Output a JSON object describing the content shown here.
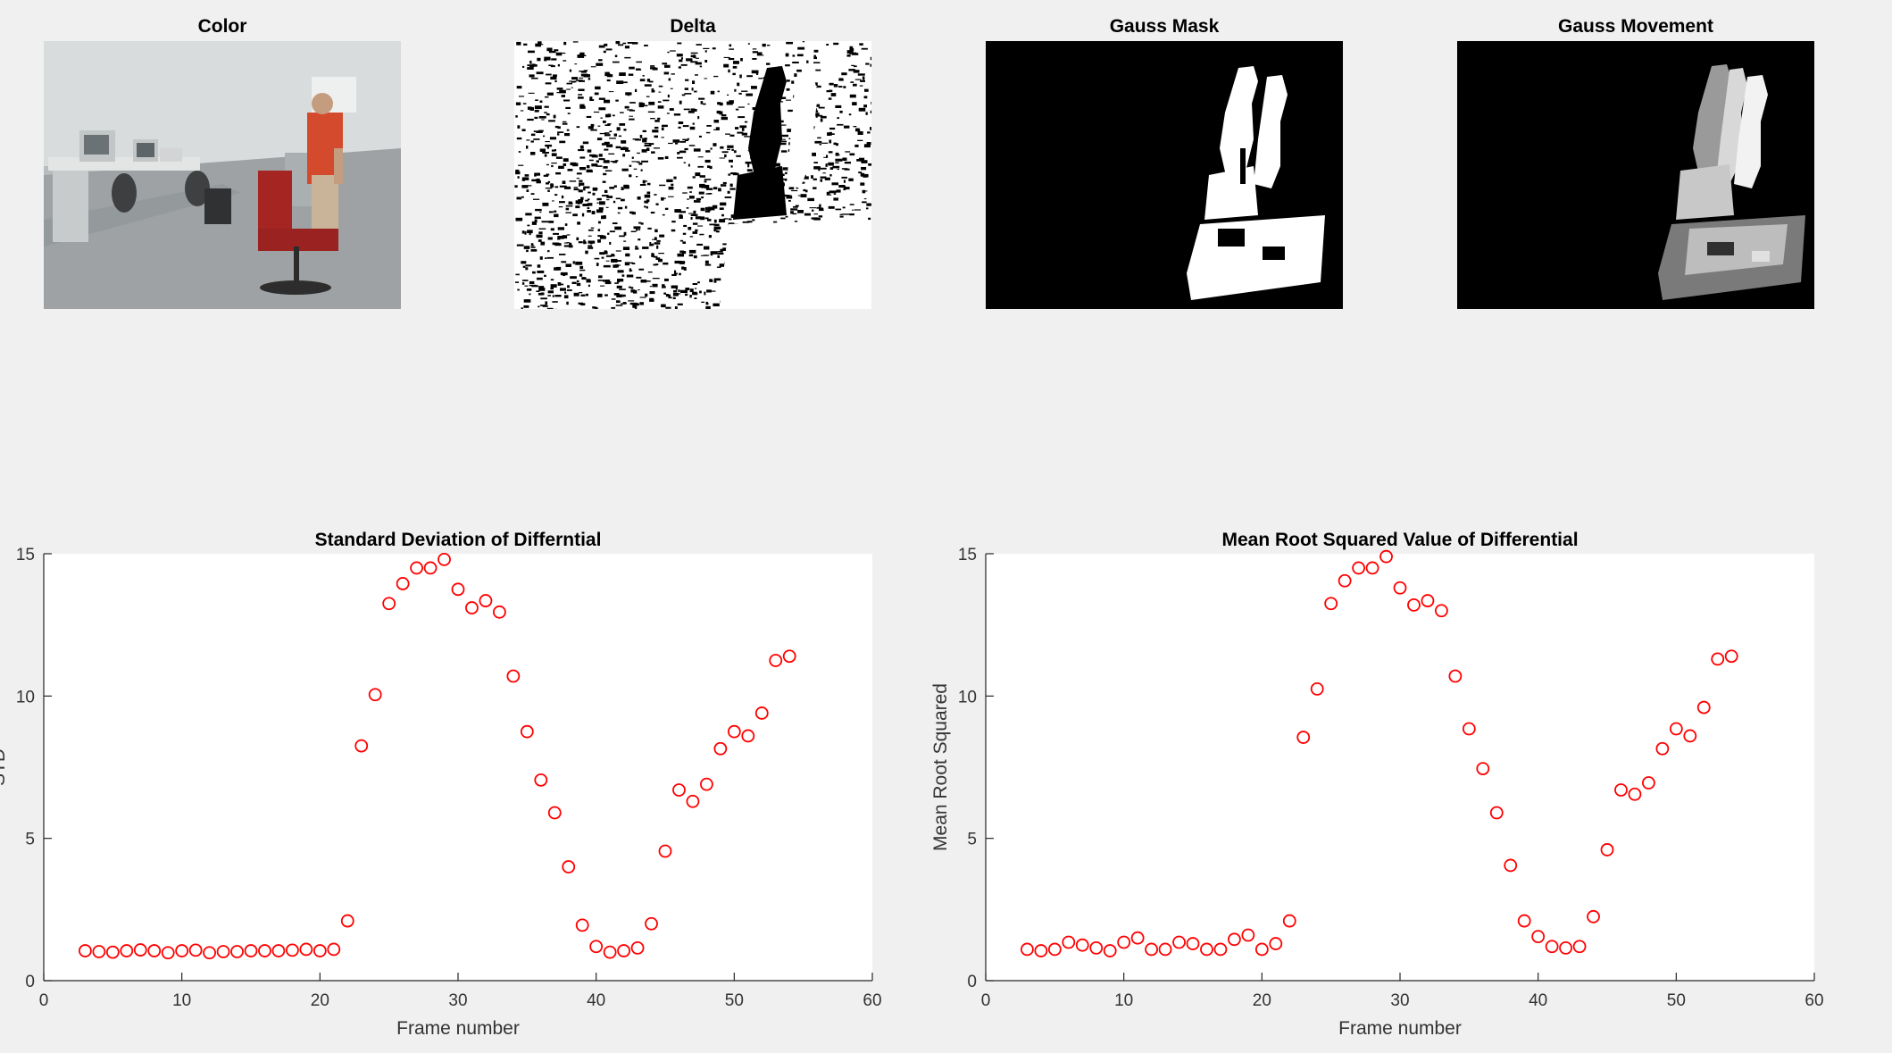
{
  "images": [
    {
      "title": "Color"
    },
    {
      "title": "Delta"
    },
    {
      "title": "Gauss Mask"
    },
    {
      "title": "Gauss Movement"
    }
  ],
  "colors": {
    "background": "#f0f0f0",
    "axes_face": "#ffffff",
    "marker": "#ff0000",
    "axis_line": "#262626"
  },
  "chart_data": [
    {
      "type": "scatter",
      "title": "Standard Deviation of Differntial",
      "xlabel": "Frame number",
      "ylabel": "STD",
      "xlim": [
        0,
        60
      ],
      "ylim": [
        0,
        15
      ],
      "xticks": [
        0,
        10,
        20,
        30,
        40,
        50,
        60
      ],
      "yticks": [
        0,
        5,
        10,
        15
      ],
      "marker": "o",
      "x": [
        3,
        4,
        5,
        6,
        7,
        8,
        9,
        10,
        11,
        12,
        13,
        14,
        15,
        16,
        17,
        18,
        19,
        20,
        21,
        22,
        23,
        24,
        25,
        26,
        27,
        28,
        29,
        30,
        31,
        32,
        33,
        34,
        35,
        36,
        37,
        38,
        39,
        40,
        41,
        42,
        43,
        44,
        45,
        46,
        47,
        48,
        49,
        50,
        51,
        52,
        53,
        54
      ],
      "y": [
        1.05,
        1.02,
        1.0,
        1.05,
        1.08,
        1.05,
        0.98,
        1.05,
        1.07,
        0.98,
        1.02,
        1.02,
        1.05,
        1.05,
        1.05,
        1.07,
        1.1,
        1.05,
        1.1,
        2.1,
        8.25,
        10.05,
        13.25,
        13.95,
        14.5,
        14.5,
        14.8,
        13.75,
        13.1,
        13.35,
        12.95,
        10.7,
        8.75,
        7.05,
        5.9,
        4.0,
        1.95,
        1.2,
        1.0,
        1.05,
        1.15,
        2.0,
        4.55,
        6.7,
        6.3,
        6.9,
        8.15,
        8.75,
        8.6,
        9.4,
        11.25,
        11.4
      ]
    },
    {
      "type": "scatter",
      "title": "Mean Root Squared Value of Differential",
      "xlabel": "Frame number",
      "ylabel": "Mean Root Squared",
      "xlim": [
        0,
        60
      ],
      "ylim": [
        0,
        15
      ],
      "xticks": [
        0,
        10,
        20,
        30,
        40,
        50,
        60
      ],
      "yticks": [
        0,
        5,
        10,
        15
      ],
      "marker": "o",
      "x": [
        3,
        4,
        5,
        6,
        7,
        8,
        9,
        10,
        11,
        12,
        13,
        14,
        15,
        16,
        17,
        18,
        19,
        20,
        21,
        22,
        23,
        24,
        25,
        26,
        27,
        28,
        29,
        30,
        31,
        32,
        33,
        34,
        35,
        36,
        37,
        38,
        39,
        40,
        41,
        42,
        43,
        44,
        45,
        46,
        47,
        48,
        49,
        50,
        51,
        52,
        53,
        54
      ],
      "y": [
        1.1,
        1.05,
        1.1,
        1.35,
        1.25,
        1.15,
        1.05,
        1.35,
        1.5,
        1.1,
        1.1,
        1.35,
        1.3,
        1.1,
        1.1,
        1.45,
        1.6,
        1.1,
        1.3,
        2.1,
        8.55,
        10.25,
        13.25,
        14.05,
        14.5,
        14.5,
        14.9,
        13.8,
        13.2,
        13.35,
        13.0,
        10.7,
        8.85,
        7.45,
        5.9,
        4.05,
        2.1,
        1.55,
        1.2,
        1.15,
        1.2,
        2.25,
        4.6,
        6.7,
        6.55,
        6.95,
        8.15,
        8.85,
        8.6,
        9.6,
        11.3,
        11.4
      ]
    }
  ]
}
